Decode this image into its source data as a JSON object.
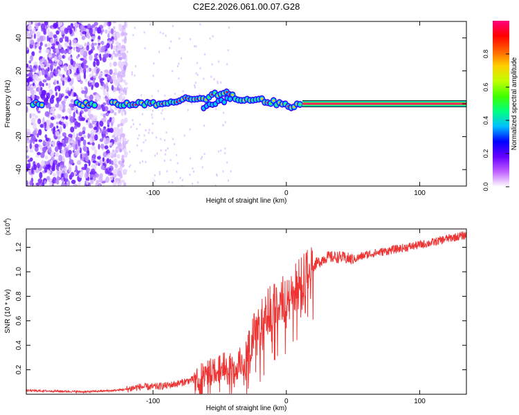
{
  "title": "C2E2.2026.061.00.07.G28",
  "chart_data": [
    {
      "type": "heatmap",
      "name": "spectrogram",
      "xlabel": "Height of straight line (km)",
      "ylabel": "Frequency (Hz)",
      "xlim": [
        -195,
        135
      ],
      "ylim": [
        -50,
        50
      ],
      "xticks": [
        -100,
        0,
        100
      ],
      "xtick_labels": [
        "-100",
        "0",
        "100"
      ],
      "yticks": [
        -40,
        -20,
        0,
        20,
        40
      ],
      "ytick_labels": [
        "-40",
        "-20",
        "0",
        "20",
        "40"
      ],
      "colorbar": {
        "label": "Normalized spectral amplitude",
        "range": [
          0,
          1
        ],
        "ticks": [
          0,
          0.2,
          0.4,
          0.6,
          0.8
        ],
        "tick_labels": [
          "0.0",
          "0.2",
          "0.4",
          "0.6",
          "0.8"
        ],
        "colormap": [
          "#ffffff",
          "#c060ff",
          "#6600ff",
          "#0000ff",
          "#00c0ff",
          "#00ff80",
          "#40ff00",
          "#c0ff00",
          "#ffd000",
          "#ff6000",
          "#ff0000",
          "#ff0080"
        ]
      },
      "ridge": [
        {
          "x": -195,
          "f": 0
        },
        {
          "x": -130,
          "f": 0
        },
        {
          "x": -100,
          "f": 0
        },
        {
          "x": -85,
          "f": 1
        },
        {
          "x": -75,
          "f": 3
        },
        {
          "x": -65,
          "f": 2
        },
        {
          "x": -55,
          "f": 5
        },
        {
          "x": -45,
          "f": 8
        },
        {
          "x": -38,
          "f": 3
        },
        {
          "x": -25,
          "f": 2
        },
        {
          "x": -15,
          "f": 2
        },
        {
          "x": -5,
          "f": 0
        },
        {
          "x": 5,
          "f": -2
        },
        {
          "x": 12,
          "f": 0
        },
        {
          "x": 135,
          "f": 0
        }
      ]
    },
    {
      "type": "line",
      "name": "snr",
      "xlabel": "Height of straight line (km)",
      "ylabel": "SNR (10 * v/v)",
      "y_multiplier": "(x10",
      "y_multiplier_exp": "4",
      "xlim": [
        -195,
        135
      ],
      "ylim": [
        0,
        1.35
      ],
      "xticks": [
        -100,
        0,
        100
      ],
      "xtick_labels": [
        "-100",
        "0",
        "100"
      ],
      "yticks": [
        0.2,
        0.4,
        0.6,
        0.8,
        1.0,
        1.2
      ],
      "ytick_labels": [
        "0.2",
        "0.4",
        "0.6",
        "0.8",
        "1.0",
        "1.2"
      ],
      "color": "#ee3333",
      "series": [
        {
          "name": "SNR",
          "x": [
            -195,
            -150,
            -130,
            -120,
            -110,
            -100,
            -90,
            -80,
            -70,
            -60,
            -50,
            -40,
            -35,
            -30,
            -25,
            -20,
            -15,
            -10,
            -5,
            0,
            5,
            10,
            15,
            20,
            30,
            40,
            50,
            60,
            70,
            80,
            90,
            100,
            110,
            120,
            130,
            135
          ],
          "values": [
            0.03,
            0.02,
            0.03,
            0.04,
            0.06,
            0.06,
            0.07,
            0.09,
            0.12,
            0.16,
            0.22,
            0.24,
            0.26,
            0.32,
            0.45,
            0.55,
            0.65,
            0.72,
            0.75,
            0.8,
            0.85,
            0.92,
            1.0,
            1.05,
            1.12,
            1.12,
            1.1,
            1.14,
            1.16,
            1.18,
            1.2,
            1.22,
            1.24,
            1.27,
            1.29,
            1.3
          ]
        }
      ]
    }
  ]
}
